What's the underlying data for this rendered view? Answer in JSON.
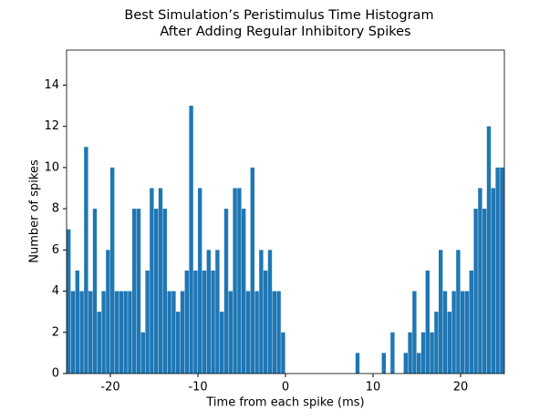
{
  "chart_data": {
    "type": "histogram",
    "title": [
      "Best Simulation’s Peristimulus Time Histogram",
      "After Adding Regular Inhibitory Spikes"
    ],
    "x_label": "Time from each spike (ms)",
    "y_label": "Number of spikes",
    "color": "#1f77b4",
    "bins": [
      -25,
      -24.5,
      -24,
      -23.5,
      -23,
      -22.5,
      -22,
      -21.5,
      -21,
      -20.5,
      -20,
      -19.5,
      -19,
      -18.5,
      -18,
      -17.5,
      -17,
      -16.5,
      -16,
      -15.5,
      -15,
      -14.5,
      -14,
      -13.5,
      -13,
      -12.5,
      -12,
      -11.5,
      -11,
      -10.5,
      -10,
      -9.5,
      -9,
      -8.5,
      -8,
      -7.5,
      -7,
      -6.5,
      -6,
      -5.5,
      -5,
      -4.5,
      -4,
      -3.5,
      -3,
      -2.5,
      -2,
      -1.5,
      -1,
      -0.5,
      0,
      0.5,
      1,
      1.5,
      2,
      2.5,
      3,
      3.5,
      4,
      4.5,
      5,
      5.5,
      6,
      6.5,
      7,
      7.5,
      8,
      8.5,
      9,
      9.5,
      10,
      10.5,
      11,
      11.5,
      12,
      12.5,
      13,
      13.5,
      14,
      14.5,
      15,
      15.5,
      16,
      16.5,
      17,
      17.5,
      18,
      18.5,
      19,
      19.5,
      20,
      20.5,
      21,
      21.5,
      22,
      22.5,
      23,
      23.5,
      24,
      24.5,
      25
    ],
    "values": [
      7,
      4,
      5,
      4,
      11,
      4,
      8,
      3,
      4,
      6,
      10,
      4,
      4,
      4,
      4,
      8,
      8,
      2,
      5,
      9,
      8,
      9,
      8,
      4,
      4,
      3,
      4,
      5,
      13,
      5,
      9,
      5,
      6,
      5,
      6,
      3,
      8,
      4,
      9,
      9,
      8,
      4,
      10,
      4,
      6,
      5,
      6,
      4,
      4,
      2,
      0,
      0,
      0,
      0,
      0,
      0,
      0,
      0,
      0,
      0,
      0,
      0,
      0,
      0,
      0,
      0,
      1,
      0,
      0,
      0,
      0,
      0,
      1,
      0,
      2,
      0,
      0,
      1,
      2,
      4,
      1,
      2,
      5,
      2,
      3,
      6,
      4,
      3,
      4,
      6,
      4,
      4,
      5,
      8,
      9,
      8,
      12,
      9,
      10,
      10
    ],
    "xlim": [
      -25,
      25
    ],
    "xticks": [
      -20,
      -10,
      0,
      10,
      20
    ],
    "ylim": [
      0,
      15.7
    ],
    "yticks": [
      0,
      2,
      4,
      6,
      8,
      10,
      12,
      14
    ]
  }
}
